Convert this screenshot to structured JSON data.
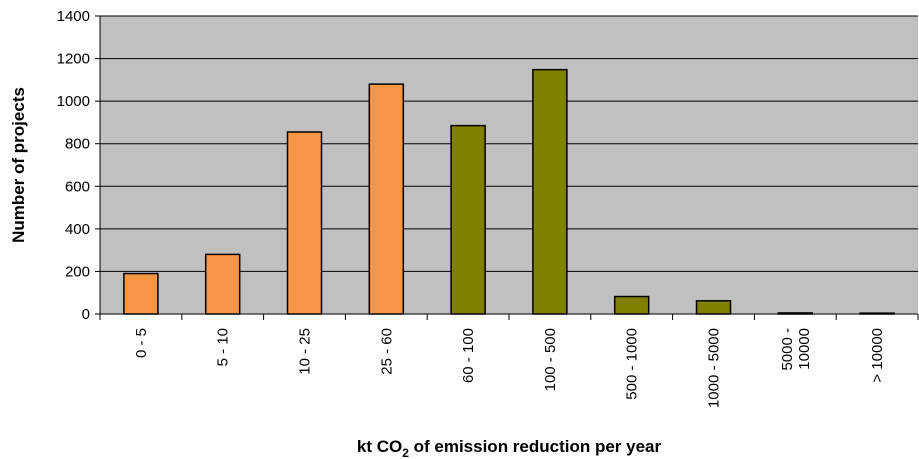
{
  "chart_data": {
    "type": "bar",
    "categories": [
      "0 - 5",
      "5 - 10",
      "10 - 25",
      "25 - 60",
      "60 - 100",
      "100 - 500",
      "500 - 1000",
      "1000 - 5000",
      "5000 - 10000",
      "> 10000"
    ],
    "category_lines": [
      [
        "0 - 5"
      ],
      [
        "5 - 10"
      ],
      [
        "10 - 25"
      ],
      [
        "25 - 60"
      ],
      [
        "60 - 100"
      ],
      [
        "100 - 500"
      ],
      [
        "500 - 1000"
      ],
      [
        "1000 - 5000"
      ],
      [
        "5000 -",
        "10000"
      ],
      [
        "> 10000"
      ]
    ],
    "values": [
      190,
      280,
      855,
      1080,
      885,
      1148,
      82,
      62,
      5,
      4
    ],
    "bar_colors": [
      "#F79646",
      "#F79646",
      "#F79646",
      "#F79646",
      "#808000",
      "#808000",
      "#808000",
      "#808000",
      "#808000",
      "#808000"
    ],
    "ylim": [
      0,
      1400
    ],
    "yticks": [
      0,
      200,
      400,
      600,
      800,
      1000,
      1200,
      1400
    ],
    "ylabel": "Number of projects",
    "xlabel": {
      "prefix": "kt CO",
      "subscript": "2",
      "suffix": " of emission reduction per year"
    },
    "grid": true,
    "plot_background": "#C0C0C0",
    "gridline_color": "#000000",
    "legend": "none"
  }
}
